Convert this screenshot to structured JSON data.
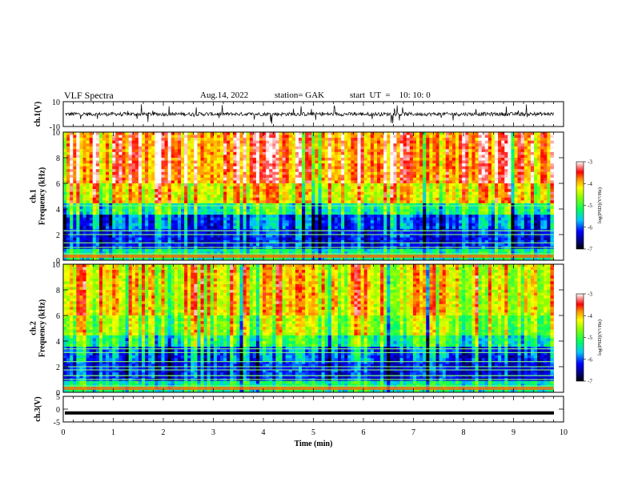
{
  "header": {
    "title": "VLF Spectra",
    "date": "Aug.14, 2022",
    "station": "station= GAK",
    "start": "start  UT  =    10: 10: 0"
  },
  "chart_data": [
    {
      "type": "line",
      "panel": "ch1-waveform",
      "ylabel": "ch.1(V)",
      "ylim": [
        -10,
        10
      ],
      "yticks": [
        "10",
        "-10"
      ],
      "xlim": [
        0,
        10
      ],
      "description_series": "noisy voltage trace centered near 0 V with spikes up to about +/-8 V",
      "mean": 0,
      "amplitude_typical": 2.5,
      "amplitude_spikes": 8
    },
    {
      "type": "heatmap",
      "panel": "ch1-spectrogram",
      "ylabel": "ch.1\nFrequency  (kHz)",
      "ylim": [
        0,
        10
      ],
      "yticks": [
        "0",
        "2",
        "4",
        "6",
        "8",
        "10"
      ],
      "xlim": [
        0,
        10
      ],
      "data_end_min": 9.8,
      "colorbar": {
        "label": "log(PSD)(V²/Hz)",
        "range": [
          -7,
          -3
        ],
        "ticks": [
          "-7",
          "-6",
          "-5",
          "-4",
          "-3"
        ]
      },
      "lines_khz": [
        0.5,
        1.0,
        1.35,
        2.0,
        2.3,
        4.25
      ]
    },
    {
      "type": "heatmap",
      "panel": "ch2-spectrogram",
      "ylabel": "ch.2\nFrequency  (kHz)",
      "ylim": [
        0,
        10
      ],
      "yticks": [
        "0",
        "2",
        "4",
        "6",
        "8",
        "10"
      ],
      "xlim": [
        0,
        10
      ],
      "data_end_min": 9.8,
      "colorbar": {
        "label": "log(PSD)(V²/Hz)",
        "range": [
          -7,
          -3
        ],
        "ticks": [
          "-7",
          "-6",
          "-5",
          "-4",
          "-3"
        ]
      },
      "lines_khz": [
        0.5,
        1.0,
        1.3,
        1.75,
        2.0,
        2.4,
        3.1,
        3.4
      ]
    },
    {
      "type": "line",
      "panel": "ch3-waveform",
      "ylabel": "ch.3(V)",
      "ylim": [
        -5,
        5
      ],
      "yticks": [
        "5",
        "0",
        "-5"
      ],
      "xlim": [
        0,
        10
      ],
      "xlabel": "Time  (min)",
      "xticks": [
        "0",
        "1",
        "2",
        "3",
        "4",
        "5",
        "6",
        "7",
        "8",
        "9",
        "10"
      ],
      "constant_value": -1.5
    }
  ]
}
